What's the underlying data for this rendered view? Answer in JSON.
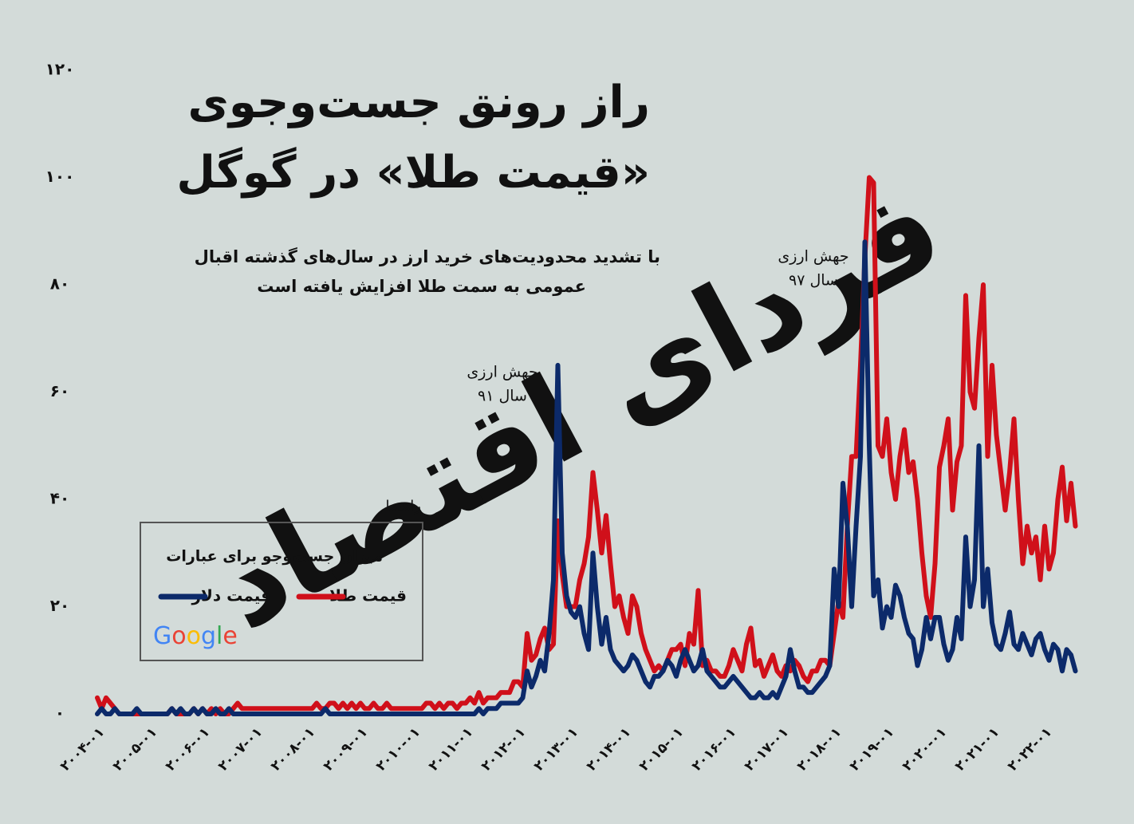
{
  "chart_data": {
    "type": "line",
    "title": [
      "راز رونق جست‌وجوی",
      "«قیمت طلا» در گوگل"
    ],
    "subtitle": [
      "با تشدید محدودیت‌های خرید ارز در سال‌های گذشته اقبال",
      "عمومی به سمت طلا افزایش یافته است"
    ],
    "watermark": "فردای اقتصاد",
    "annotations": [
      {
        "lines": [
          "جهش ارزی",
          "سال ۹۱"
        ]
      },
      {
        "lines": [
          "جهش ارزی",
          "سال ۹۷"
        ]
      }
    ],
    "legend": {
      "label": "راهنما",
      "title": "میزان جست‌وجو برای عبارات",
      "source": "Google"
    },
    "ylim": [
      0,
      120
    ],
    "yticks": [
      {
        "value": 0,
        "label": "۰"
      },
      {
        "value": 20,
        "label": "۲۰"
      },
      {
        "value": 40,
        "label": "۴۰"
      },
      {
        "value": 60,
        "label": "۶۰"
      },
      {
        "value": 80,
        "label": "۸۰"
      },
      {
        "value": 100,
        "label": "۱۰۰"
      },
      {
        "value": 120,
        "label": "۱۲۰"
      }
    ],
    "categories": [
      "۲۰۰۴-۰۱",
      null,
      null,
      null,
      null,
      null,
      null,
      null,
      null,
      null,
      null,
      null,
      "۲۰۰۵-۰۱",
      null,
      null,
      null,
      null,
      null,
      null,
      null,
      null,
      null,
      null,
      null,
      "۲۰۰۶-۰۱",
      null,
      null,
      null,
      null,
      null,
      null,
      null,
      null,
      null,
      null,
      null,
      "۲۰۰۷-۰۱",
      null,
      null,
      null,
      null,
      null,
      null,
      null,
      null,
      null,
      null,
      null,
      "۲۰۰۸-۰۱",
      null,
      null,
      null,
      null,
      null,
      null,
      null,
      null,
      null,
      null,
      null,
      "۲۰۰۹-۰۱",
      null,
      null,
      null,
      null,
      null,
      null,
      null,
      null,
      null,
      null,
      null,
      "۲۰۱۰-۰۱",
      null,
      null,
      null,
      null,
      null,
      null,
      null,
      null,
      null,
      null,
      null,
      "۲۰۱۱-۰۱",
      null,
      null,
      null,
      null,
      null,
      null,
      null,
      null,
      null,
      null,
      null,
      "۲۰۱۲-۰۱",
      null,
      null,
      null,
      null,
      null,
      null,
      null,
      null,
      null,
      null,
      null,
      "۲۰۱۳-۰۱",
      null,
      null,
      null,
      null,
      null,
      null,
      null,
      null,
      null,
      null,
      null,
      "۲۰۱۴-۰۱",
      null,
      null,
      null,
      null,
      null,
      null,
      null,
      null,
      null,
      null,
      null,
      "۲۰۱۵-۰۱",
      null,
      null,
      null,
      null,
      null,
      null,
      null,
      null,
      null,
      null,
      null,
      "۲۰۱۶-۰۱",
      null,
      null,
      null,
      null,
      null,
      null,
      null,
      null,
      null,
      null,
      null,
      "۲۰۱۷-۰۱",
      null,
      null,
      null,
      null,
      null,
      null,
      null,
      null,
      null,
      null,
      null,
      "۲۰۱۸-۰۱",
      null,
      null,
      null,
      null,
      null,
      null,
      null,
      null,
      null,
      null,
      null,
      "۲۰۱۹-۰۱",
      null,
      null,
      null,
      null,
      null,
      null,
      null,
      null,
      null,
      null,
      null,
      "۲۰۲۰-۰۱",
      null,
      null,
      null,
      null,
      null,
      null,
      null,
      null,
      null,
      null,
      null,
      "۲۰۲۱-۰۱",
      null,
      null,
      null,
      null,
      null,
      null,
      null,
      null,
      null,
      null,
      null,
      "۲۰۲۲-۰۱",
      null,
      null,
      null,
      null,
      null,
      null,
      null
    ],
    "series": [
      {
        "name": "قیمت طلا",
        "color": "#d0101a",
        "values": [
          3,
          1,
          3,
          2,
          1,
          0,
          0,
          0,
          0,
          0,
          0,
          0,
          0,
          0,
          0,
          0,
          0,
          1,
          0,
          0,
          0,
          0,
          1,
          0,
          1,
          0,
          1,
          0,
          1,
          0,
          0,
          1,
          2,
          1,
          1,
          1,
          1,
          1,
          1,
          1,
          1,
          1,
          1,
          1,
          1,
          1,
          1,
          1,
          1,
          1,
          2,
          1,
          1,
          2,
          2,
          1,
          2,
          1,
          2,
          1,
          2,
          1,
          1,
          2,
          1,
          1,
          2,
          1,
          1,
          1,
          1,
          1,
          1,
          1,
          1,
          2,
          2,
          1,
          2,
          1,
          2,
          2,
          1,
          2,
          2,
          3,
          2,
          4,
          2,
          3,
          3,
          3,
          4,
          4,
          4,
          6,
          6,
          5,
          15,
          10,
          11,
          14,
          16,
          12,
          13,
          36,
          26,
          20,
          20,
          20,
          25,
          28,
          33,
          45,
          38,
          30,
          37,
          28,
          20,
          22,
          18,
          15,
          22,
          20,
          15,
          12,
          10,
          8,
          9,
          8,
          10,
          12,
          12,
          13,
          9,
          15,
          13,
          23,
          9,
          10,
          8,
          8,
          7,
          7,
          9,
          12,
          10,
          8,
          13,
          16,
          9,
          10,
          7,
          9,
          11,
          8,
          7,
          9,
          8,
          10,
          9,
          7,
          6,
          8,
          8,
          10,
          10,
          9,
          15,
          21,
          18,
          35,
          48,
          48,
          65,
          85,
          100,
          99,
          50,
          48,
          55,
          45,
          40,
          48,
          53,
          45,
          47,
          40,
          30,
          22,
          18,
          28,
          46,
          50,
          55,
          38,
          47,
          50,
          78,
          60,
          57,
          70,
          80,
          48,
          65,
          52,
          45,
          38,
          45,
          55,
          40,
          28,
          35,
          30,
          33,
          25,
          35,
          27,
          30,
          40,
          46,
          36,
          43,
          35
        ]
      },
      {
        "name": "قیمت دلار",
        "color": "#0c2a6a",
        "values": [
          0,
          1,
          0,
          0,
          1,
          0,
          0,
          0,
          0,
          1,
          0,
          0,
          0,
          0,
          0,
          0,
          0,
          1,
          0,
          1,
          0,
          0,
          1,
          0,
          1,
          0,
          0,
          1,
          0,
          0,
          1,
          0,
          0,
          0,
          0,
          0,
          0,
          0,
          0,
          0,
          0,
          0,
          0,
          0,
          0,
          0,
          0,
          0,
          0,
          0,
          0,
          0,
          1,
          0,
          0,
          0,
          0,
          0,
          0,
          0,
          0,
          0,
          0,
          0,
          0,
          0,
          0,
          0,
          0,
          0,
          0,
          0,
          0,
          0,
          0,
          0,
          0,
          0,
          0,
          0,
          0,
          0,
          0,
          0,
          0,
          0,
          0,
          1,
          0,
          1,
          1,
          1,
          2,
          2,
          2,
          2,
          2,
          3,
          8,
          5,
          7,
          10,
          8,
          15,
          25,
          65,
          30,
          22,
          19,
          18,
          20,
          15,
          12,
          30,
          20,
          13,
          18,
          12,
          10,
          9,
          8,
          9,
          11,
          10,
          8,
          6,
          5,
          7,
          7,
          8,
          10,
          9,
          7,
          10,
          12,
          10,
          8,
          9,
          12,
          8,
          7,
          6,
          5,
          5,
          6,
          7,
          6,
          5,
          4,
          3,
          3,
          4,
          3,
          3,
          4,
          3,
          5,
          7,
          12,
          8,
          5,
          5,
          4,
          4,
          5,
          6,
          7,
          9,
          27,
          20,
          43,
          35,
          20,
          35,
          48,
          88,
          50,
          22,
          25,
          16,
          20,
          18,
          24,
          22,
          18,
          15,
          14,
          9,
          12,
          18,
          14,
          18,
          18,
          13,
          10,
          12,
          18,
          14,
          33,
          20,
          25,
          50,
          20,
          27,
          17,
          13,
          12,
          15,
          19,
          13,
          12,
          15,
          13,
          11,
          14,
          15,
          12,
          10,
          13,
          12,
          8,
          12,
          11,
          8
        ]
      }
    ]
  }
}
